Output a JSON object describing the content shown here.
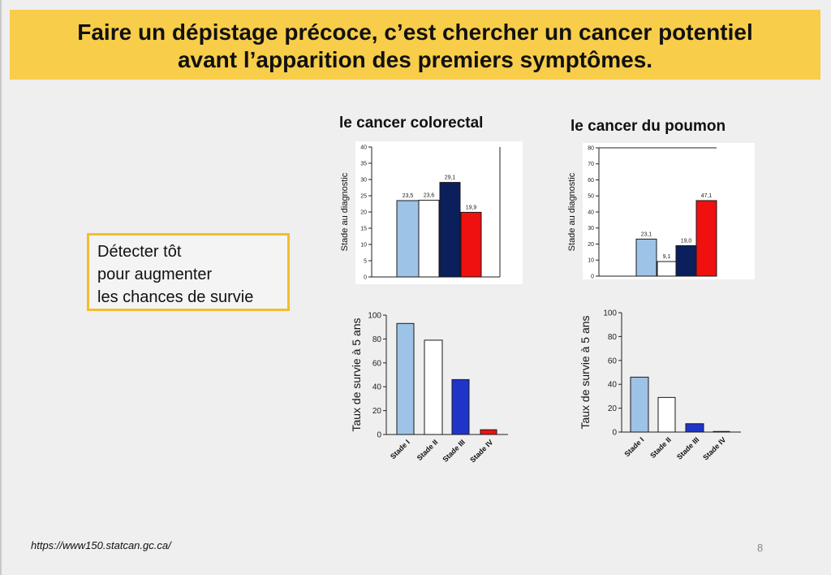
{
  "header": {
    "line1": "Faire un dépistage précoce, c’est chercher un cancer potentiel",
    "line2": "avant l’apparition des premiers symptômes."
  },
  "callout": {
    "lines": [
      "Détecter tôt",
      "pour augmenter",
      "les chances de survie"
    ]
  },
  "footer": {
    "source": "https://www150.statcan.gc.ca/",
    "page": "8"
  },
  "colors": {
    "title_band": "#f7cd4a",
    "callout_border": "#f3bd2e",
    "stage1": "#9dc3e6",
    "stage2": "#ffffff",
    "stage3_dark": "#0b1f5c",
    "stage3_blue": "#1f35c9",
    "stage4": "#ef1010"
  },
  "chart_data": [
    {
      "type": "bar",
      "title": "le cancer colorectal",
      "ylabel": "Stade au diagnostic",
      "ylim": [
        0,
        40
      ],
      "yticks": [
        "0",
        "5",
        "10",
        "15",
        "20",
        "25",
        "30",
        "35",
        "40"
      ],
      "values": [
        23.5,
        23.6,
        29.1,
        19.9
      ],
      "value_labels": [
        "23,5",
        "23,6",
        "29,1",
        "19,9"
      ],
      "bar_colors": [
        "#9dc3e6",
        "#ffffff",
        "#0b1f5c",
        "#ef1010"
      ]
    },
    {
      "type": "bar",
      "title": "le cancer du poumon",
      "ylabel": "Stade au diagnostic",
      "ylim": [
        0,
        80
      ],
      "yticks": [
        "0",
        "10",
        "20",
        "30",
        "40",
        "50",
        "60",
        "70",
        "80"
      ],
      "values": [
        23.1,
        9.1,
        19.0,
        47.1
      ],
      "value_labels": [
        "23,1",
        "9,1",
        "19,0",
        "47,1"
      ],
      "bar_colors": [
        "#9dc3e6",
        "#ffffff",
        "#0b1f5c",
        "#ef1010"
      ]
    },
    {
      "type": "bar",
      "ylabel": "Taux de survie à 5 ans",
      "ylim": [
        0,
        100
      ],
      "yticks": [
        "0",
        "20",
        "40",
        "60",
        "80",
        "100"
      ],
      "categories": [
        "Stade I",
        "Stade II",
        "Stade III",
        "Stade IV"
      ],
      "values": [
        93,
        79,
        46,
        4
      ],
      "bar_colors": [
        "#9dc3e6",
        "#ffffff",
        "#1f35c9",
        "#ef1010"
      ]
    },
    {
      "type": "bar",
      "ylabel": "Taux de survie à 5 ans",
      "ylim": [
        0,
        100
      ],
      "yticks": [
        "0",
        "20",
        "40",
        "60",
        "80",
        "100"
      ],
      "categories": [
        "Stade I",
        "Stade II",
        "Stade III",
        "Stade IV"
      ],
      "values": [
        46,
        29,
        7,
        0.5
      ],
      "bar_colors": [
        "#9dc3e6",
        "#ffffff",
        "#1f35c9",
        "#1f35c9"
      ]
    }
  ]
}
